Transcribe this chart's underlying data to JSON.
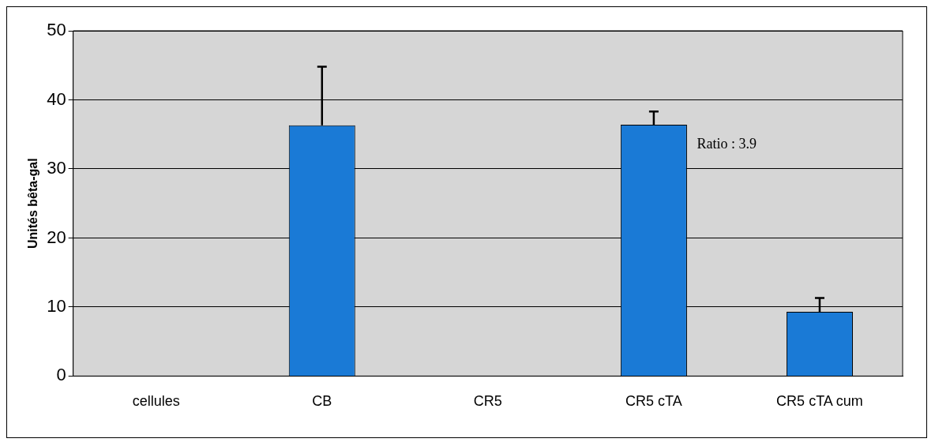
{
  "chart_data": {
    "type": "bar",
    "ylabel": "Unités bêta-gal",
    "categories": [
      "cellules",
      "CB",
      "CR5",
      "CR5 cTA",
      "CR5 cTA cum"
    ],
    "values": [
      0,
      36.3,
      0,
      36.4,
      9.3
    ],
    "errors": [
      null,
      [
        36.3,
        44.8
      ],
      null,
      [
        36.4,
        38.3
      ],
      [
        9.3,
        11.3
      ]
    ],
    "color": "#1a7ad6",
    "ylim": [
      0,
      50
    ],
    "yticks": [
      0,
      10,
      20,
      30,
      40,
      50
    ],
    "grid": "y",
    "legend": false,
    "annotations": [
      "Ratio : 3.9"
    ]
  }
}
